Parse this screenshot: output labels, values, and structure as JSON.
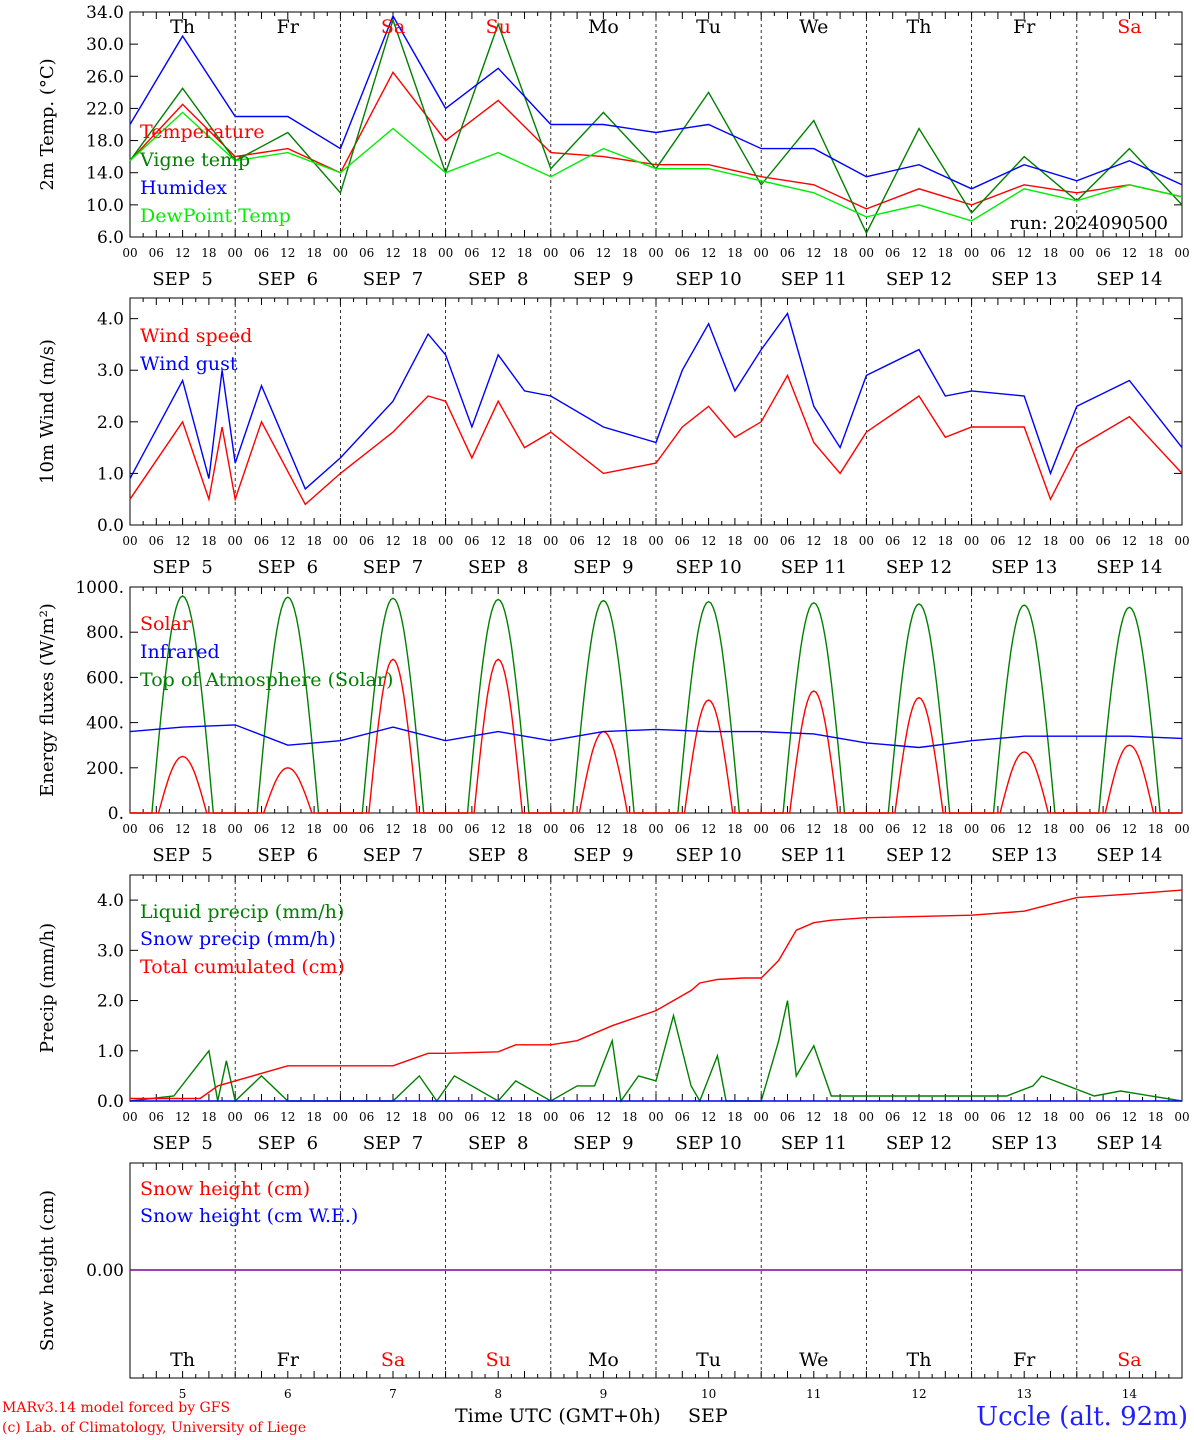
{
  "chart_data": [
    {
      "type": "line",
      "panel": "temperature",
      "ylabel": "2m Temp. (°C)",
      "ylim": [
        6.0,
        34.0
      ],
      "yticks": [
        "6.0",
        "10.0",
        "14.0",
        "18.0",
        "22.0",
        "26.0",
        "30.0",
        "34.0"
      ],
      "day_labels": [
        "Th",
        "Fr",
        "Sa",
        "Su",
        "Mo",
        "Tu",
        "We",
        "Th",
        "Fr",
        "Sa"
      ],
      "date_labels": [
        "SEP  5",
        "SEP  6",
        "SEP  7",
        "SEP  8",
        "SEP  9",
        "SEP 10",
        "SEP 11",
        "SEP 12",
        "SEP 13",
        "SEP 14"
      ],
      "hour_labels": [
        "00",
        "06",
        "12",
        "18"
      ],
      "annotation": "run: 2024090500",
      "x_unit": "hours since 2024-09-05 00 UTC",
      "series": [
        {
          "name": "Temperature",
          "color": "#ff0000",
          "x": [
            0,
            12,
            24,
            36,
            48,
            60,
            72,
            84,
            96,
            108,
            120,
            132,
            144,
            156,
            168,
            180,
            192,
            204,
            216,
            228,
            240
          ],
          "y": [
            15.5,
            22.5,
            16.0,
            17.0,
            14.0,
            26.5,
            18.0,
            23.0,
            16.5,
            16.0,
            15.0,
            15.0,
            13.5,
            12.5,
            9.5,
            12.0,
            10.0,
            12.5,
            11.5,
            12.5,
            11.0
          ]
        },
        {
          "name": "Vigne temp",
          "color": "#008000",
          "x": [
            0,
            12,
            24,
            36,
            48,
            60,
            72,
            84,
            96,
            108,
            120,
            132,
            144,
            156,
            168,
            180,
            192,
            204,
            216,
            228,
            240
          ],
          "y": [
            15.5,
            24.5,
            15.5,
            19.0,
            11.5,
            33.0,
            14.0,
            32.5,
            14.5,
            21.5,
            14.5,
            24.0,
            12.5,
            20.5,
            6.5,
            19.5,
            9.0,
            16.0,
            10.5,
            17.0,
            10.0
          ]
        },
        {
          "name": "Humidex",
          "color": "#0000ff",
          "x": [
            0,
            12,
            24,
            36,
            48,
            60,
            72,
            84,
            96,
            108,
            120,
            132,
            144,
            156,
            168,
            180,
            192,
            204,
            216,
            228,
            240
          ],
          "y": [
            20.0,
            31.0,
            21.0,
            21.0,
            17.0,
            33.5,
            22.0,
            27.0,
            20.0,
            20.0,
            19.0,
            20.0,
            17.0,
            17.0,
            13.5,
            15.0,
            12.0,
            15.0,
            13.0,
            15.5,
            12.5
          ]
        },
        {
          "name": "DewPoint Temp",
          "color": "#00ee00",
          "x": [
            0,
            12,
            24,
            36,
            48,
            60,
            72,
            84,
            96,
            108,
            120,
            132,
            144,
            156,
            168,
            180,
            192,
            204,
            216,
            228,
            240
          ],
          "y": [
            15.5,
            21.5,
            15.5,
            16.5,
            14.0,
            19.5,
            14.0,
            16.5,
            13.5,
            17.0,
            14.5,
            14.5,
            13.0,
            11.5,
            8.5,
            10.0,
            8.0,
            12.0,
            10.5,
            12.5,
            11.0
          ]
        }
      ]
    },
    {
      "type": "line",
      "panel": "wind",
      "ylabel": "10m Wind (m/s)",
      "ylim": [
        0.0,
        4.4
      ],
      "yticks": [
        "0.0",
        "1.0",
        "2.0",
        "3.0",
        "4.0"
      ],
      "date_labels": [
        "SEP  5",
        "SEP  6",
        "SEP  7",
        "SEP  8",
        "SEP  9",
        "SEP 10",
        "SEP 11",
        "SEP 12",
        "SEP 13",
        "SEP 14"
      ],
      "hour_labels": [
        "00",
        "06",
        "12",
        "18"
      ],
      "x_unit": "hours since 2024-09-05 00 UTC",
      "series": [
        {
          "name": "Wind speed",
          "color": "#ff0000",
          "x": [
            0,
            12,
            18,
            21,
            24,
            30,
            40,
            48,
            60,
            68,
            72,
            78,
            84,
            90,
            96,
            108,
            120,
            126,
            132,
            138,
            144,
            150,
            156,
            162,
            168,
            180,
            186,
            192,
            204,
            210,
            216,
            228,
            240
          ],
          "y": [
            0.5,
            2.0,
            0.5,
            1.9,
            0.5,
            2.0,
            0.4,
            1.0,
            1.8,
            2.5,
            2.4,
            1.3,
            2.4,
            1.5,
            1.8,
            1.0,
            1.2,
            1.9,
            2.3,
            1.7,
            2.0,
            2.9,
            1.6,
            1.0,
            1.8,
            2.5,
            1.7,
            1.9,
            1.9,
            0.5,
            1.5,
            2.1,
            1.0
          ]
        },
        {
          "name": "Wind gust",
          "color": "#0000ff",
          "x": [
            0,
            12,
            18,
            21,
            24,
            30,
            40,
            48,
            60,
            68,
            72,
            78,
            84,
            90,
            96,
            108,
            120,
            126,
            132,
            138,
            144,
            150,
            156,
            162,
            168,
            180,
            186,
            192,
            204,
            210,
            216,
            228,
            240
          ],
          "y": [
            0.9,
            2.8,
            0.9,
            3.0,
            1.2,
            2.7,
            0.7,
            1.3,
            2.4,
            3.7,
            3.3,
            1.9,
            3.3,
            2.6,
            2.5,
            1.9,
            1.6,
            3.0,
            3.9,
            2.6,
            3.4,
            4.1,
            2.3,
            1.5,
            2.9,
            3.4,
            2.5,
            2.6,
            2.5,
            1.0,
            2.3,
            2.8,
            1.5
          ]
        }
      ]
    },
    {
      "type": "line",
      "panel": "energy",
      "ylabel": "Energy fluxes (W/m²)",
      "ylim": [
        0,
        1000
      ],
      "yticks": [
        "0.",
        "200.",
        "400.",
        "600.",
        "800.",
        "1000."
      ],
      "date_labels": [
        "SEP  5",
        "SEP  6",
        "SEP  7",
        "SEP  8",
        "SEP  9",
        "SEP 10",
        "SEP 11",
        "SEP 12",
        "SEP 13",
        "SEP 14"
      ],
      "hour_labels": [
        "00",
        "06",
        "12",
        "18"
      ],
      "x_unit": "hours since 2024-09-05 00 UTC",
      "solar_noon_peaks": {
        "Solar": [
          250,
          200,
          680,
          680,
          360,
          500,
          540,
          510,
          270,
          300
        ],
        "Top of Atmosphere (Solar)": [
          960,
          955,
          950,
          945,
          940,
          935,
          930,
          925,
          920,
          910
        ]
      },
      "series": [
        {
          "name": "Solar",
          "color": "#ff0000"
        },
        {
          "name": "Infrared",
          "color": "#0000ff",
          "x": [
            0,
            12,
            24,
            36,
            48,
            60,
            72,
            84,
            96,
            108,
            120,
            132,
            144,
            156,
            168,
            180,
            192,
            204,
            216,
            228,
            240
          ],
          "y": [
            360,
            380,
            390,
            300,
            320,
            380,
            320,
            360,
            320,
            360,
            370,
            360,
            360,
            350,
            310,
            290,
            320,
            340,
            340,
            340,
            330
          ]
        },
        {
          "name": "Top of Atmosphere (Solar)",
          "color": "#008000"
        }
      ]
    },
    {
      "type": "line",
      "panel": "precip",
      "ylabel": "Precip (mm/h)",
      "ylim": [
        0.0,
        4.5
      ],
      "yticks": [
        "0.0",
        "1.0",
        "2.0",
        "3.0",
        "4.0"
      ],
      "date_labels": [
        "SEP  5",
        "SEP  6",
        "SEP  7",
        "SEP  8",
        "SEP  9",
        "SEP 10",
        "SEP 11",
        "SEP 12",
        "SEP 13",
        "SEP 14"
      ],
      "hour_labels": [
        "00",
        "06",
        "12",
        "18"
      ],
      "x_unit": "hours since 2024-09-05 00 UTC",
      "series": [
        {
          "name": "Liquid precip (mm/h)",
          "color": "#008000",
          "x": [
            0,
            10,
            18,
            20,
            22,
            24,
            30,
            36,
            40,
            60,
            66,
            70,
            74,
            84,
            88,
            96,
            102,
            106,
            110,
            112,
            116,
            120,
            124,
            128,
            130,
            134,
            136,
            140,
            144,
            148,
            150,
            152,
            156,
            160,
            200,
            206,
            208,
            220,
            226,
            240
          ],
          "y": [
            0.0,
            0.1,
            1.0,
            0.0,
            0.8,
            0.0,
            0.5,
            0.0,
            0.0,
            0.0,
            0.5,
            0.0,
            0.5,
            0.0,
            0.4,
            0.0,
            0.3,
            0.3,
            1.2,
            0.0,
            0.5,
            0.4,
            1.7,
            0.3,
            0.0,
            0.9,
            0.0,
            0.0,
            0.0,
            1.2,
            2.0,
            0.5,
            1.1,
            0.1,
            0.1,
            0.3,
            0.5,
            0.1,
            0.2,
            0.0
          ]
        },
        {
          "name": "Snow precip (mm/h)",
          "color": "#0000ff",
          "x": [
            0,
            240
          ],
          "y": [
            0.0,
            0.0
          ]
        },
        {
          "name": "Total cumulated (cm)",
          "color": "#ff0000",
          "x": [
            0,
            16,
            20,
            28,
            36,
            48,
            60,
            68,
            72,
            84,
            88,
            96,
            102,
            110,
            120,
            128,
            130,
            134,
            140,
            144,
            148,
            152,
            156,
            160,
            168,
            192,
            204,
            216,
            228,
            240
          ],
          "y": [
            0.05,
            0.05,
            0.3,
            0.5,
            0.7,
            0.7,
            0.7,
            0.95,
            0.95,
            0.98,
            1.12,
            1.12,
            1.2,
            1.5,
            1.8,
            2.2,
            2.35,
            2.42,
            2.45,
            2.45,
            2.8,
            3.4,
            3.55,
            3.6,
            3.65,
            3.7,
            3.78,
            4.05,
            4.12,
            4.2
          ]
        }
      ]
    },
    {
      "type": "line",
      "panel": "snow",
      "ylabel": "Snow height (cm)",
      "yticks": [
        "0.00"
      ],
      "day_labels": [
        "Th",
        "Fr",
        "Sa",
        "Su",
        "Mo",
        "Tu",
        "We",
        "Th",
        "Fr",
        "Sa"
      ],
      "day_numbers": [
        "5",
        "6",
        "7",
        "8",
        "9",
        "10",
        "11",
        "12",
        "13",
        "14"
      ],
      "xlabel": "Time UTC (GMT+0h)",
      "month_label": "SEP",
      "series": [
        {
          "name": "Snow height (cm)",
          "color": "#ff0000",
          "x": [
            0,
            240
          ],
          "y": [
            0.0,
            0.0
          ]
        },
        {
          "name": "Snow height (cm W.E.)",
          "color": "#0000ff",
          "x": [
            0,
            240
          ],
          "y": [
            0.0,
            0.0
          ]
        }
      ]
    }
  ],
  "weekend_color": "#ff0000",
  "weekday_color": "#000000",
  "footer": {
    "model": "MARv3.14 model forced by GFS",
    "lab": "(c) Lab. of Climatology, University of Liege",
    "station": "Uccle (alt. 92m)"
  }
}
